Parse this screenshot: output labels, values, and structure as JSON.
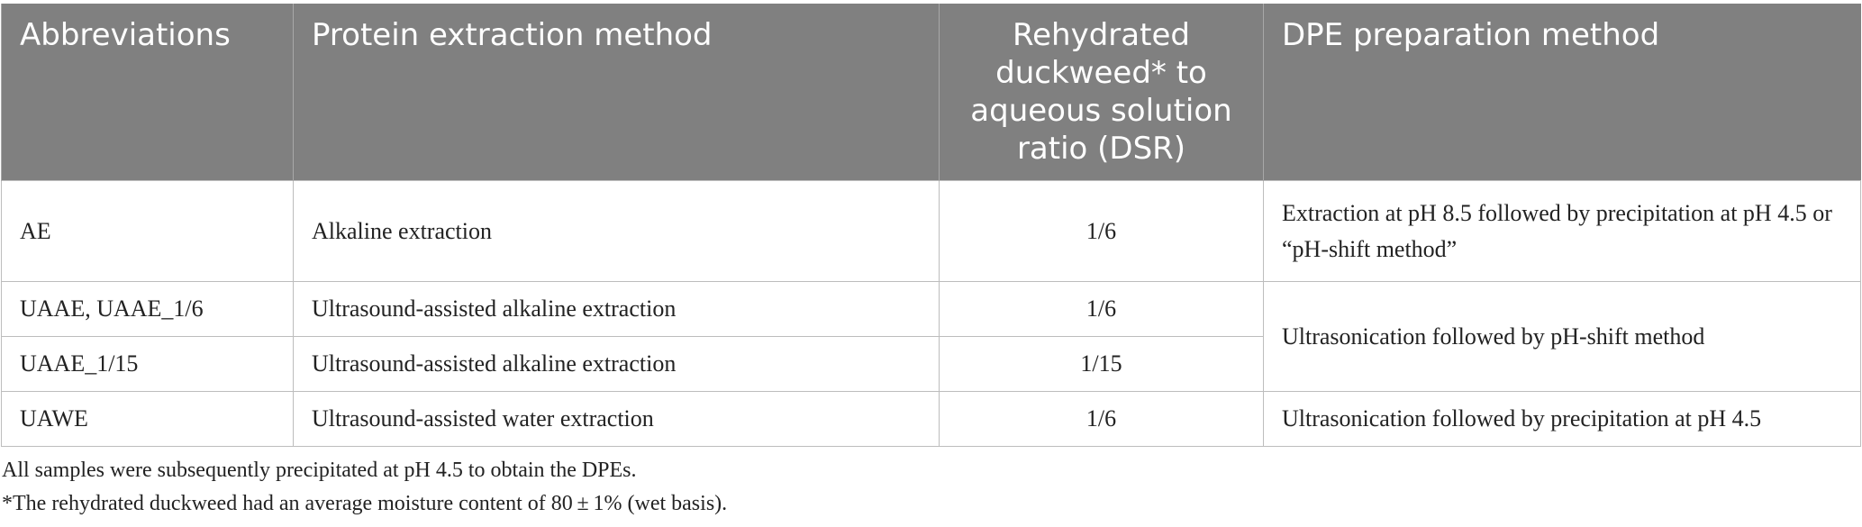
{
  "table": {
    "headers": [
      "Abbreviations",
      "Protein extraction method",
      "Rehydrated duckweed* to aqueous solution ratio (DSR)",
      "DPE preparation method"
    ],
    "rows": [
      [
        "AE",
        "Alkaline extraction",
        "1/6",
        "Extraction at pH 8.5 followed by precipitation at pH 4.5 or “pH-shift method”"
      ],
      [
        "UAAE, UAAE_1/6",
        "Ultrasound-assisted alkaline extraction",
        "1/6",
        "Ultrasonication followed by pH-shift method"
      ],
      [
        "UAAE_1/15",
        "Ultrasound-assisted alkaline extraction",
        "1/15"
      ],
      [
        "UAWE",
        "Ultrasound-assisted water extraction",
        "1/6",
        "Ultrasonication followed by precipitation at pH 4.5"
      ]
    ]
  },
  "notes": [
    "All samples were subsequently precipitated at pH 4.5 to obtain the DPEs.",
    "*The rehydrated duckweed had an average moisture content of 80 ± 1% (wet basis)."
  ]
}
